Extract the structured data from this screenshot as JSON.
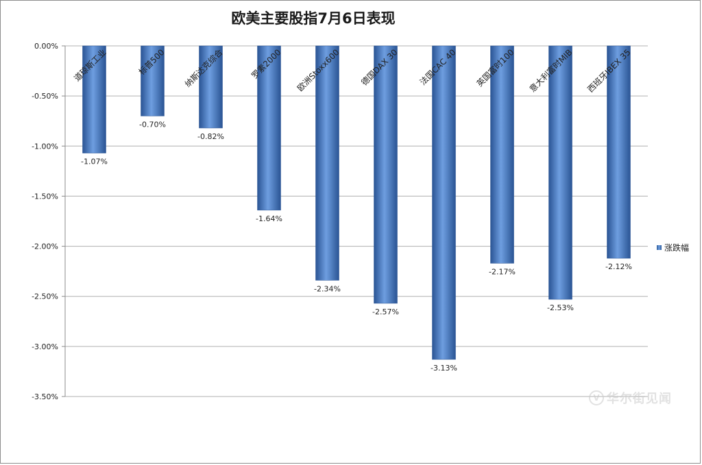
{
  "chart_data": {
    "type": "bar",
    "title": "欧美主要股指7月6日表现",
    "categories": [
      "道琼斯工业",
      "标普500",
      "纳斯达克综合",
      "罗素2000",
      "欧洲Stoxx600",
      "德国DAX 30",
      "法国CAC 40",
      "英国富时100",
      "意大利富时MIB",
      "西班牙IBEX 35"
    ],
    "series": [
      {
        "name": "涨跌幅",
        "values": [
          -1.07,
          -0.7,
          -0.82,
          -1.64,
          -2.34,
          -2.57,
          -3.13,
          -2.17,
          -2.53,
          -2.12
        ],
        "labels": [
          "-1.07%",
          "-0.70%",
          "-0.82%",
          "-1.64%",
          "-2.34%",
          "-2.57%",
          "-3.13%",
          "-2.17%",
          "-2.53%",
          "-2.12%"
        ]
      }
    ],
    "ylim": [
      -3.5,
      0
    ],
    "yticks": [
      "0.00%",
      "-0.50%",
      "-1.00%",
      "-1.50%",
      "-2.00%",
      "-2.50%",
      "-3.00%",
      "-3.50%"
    ],
    "xlabel": "",
    "ylabel": "",
    "grid": true,
    "legend_position": "right",
    "bar_color": "#3f6fb5"
  },
  "watermark": {
    "logo_glyph": "V",
    "text": "华尔街见闻"
  }
}
